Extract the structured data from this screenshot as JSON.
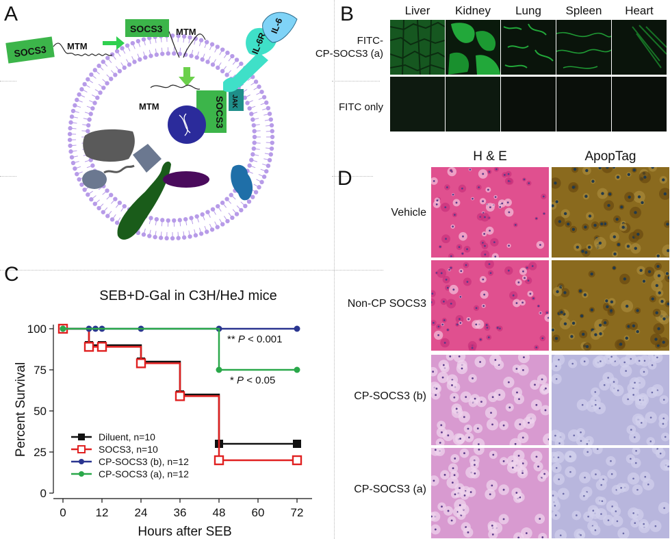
{
  "panels": {
    "a": "A",
    "b": "B",
    "c": "C",
    "d": "D"
  },
  "diagram": {
    "socs3_outer": "SOCS3",
    "mtm_outer": "MTM",
    "socs3_middle": "SOCS3",
    "mtm_middle": "MTM",
    "mtm_inner": "MTM",
    "socs3_inner": "SOCS3",
    "jak": "JAK",
    "il6r": "IL-6R",
    "il6": "IL-6",
    "colors": {
      "socs3_box": "#3cb54a",
      "arrow": "#2fd04f",
      "arrow_inner": "#6bd04b",
      "lipid": "#b79be8",
      "receptor": "#3fe0c8",
      "il6": "#7fd3f7",
      "jak": "#1f8f8a",
      "nucleus": "#2b2b9b",
      "dark_green": "#1a5c1a",
      "purple_organelle": "#4a0b5c",
      "blue_organelle": "#1f6fa8",
      "grey_organelle": "#5a5a5a"
    }
  },
  "panel_b": {
    "organs": [
      "Liver",
      "Kidney",
      "Lung",
      "Spleen",
      "Heart"
    ],
    "row1_label": "FITC-\nCP-SOCS3 (a)",
    "row1_line1": "FITC-",
    "row1_line2": "CP-SOCS3 (a)",
    "row2_label": "FITC only",
    "colors": {
      "signal": "#1fa83a",
      "background": "#0d150d"
    }
  },
  "panel_d": {
    "columns": [
      "H & E",
      "ApopTag"
    ],
    "rows": [
      "Vehicle",
      "Non-CP SOCS3",
      "CP-SOCS3 (b)",
      "CP-SOCS3 (a)"
    ],
    "colors": {
      "he_damaged": "#e0508f",
      "he_normal": "#d89ad0",
      "apop_positive": "#8a6a1e",
      "apop_normal": "#b8b6dd"
    }
  },
  "chart_data": {
    "type": "line",
    "step": true,
    "title": "SEB+D-Gal in C3H/HeJ mice",
    "xlabel": "Hours after SEB",
    "ylabel": "Percent Survival",
    "xlim": [
      0,
      72
    ],
    "ylim": [
      0,
      100
    ],
    "xticks": [
      0,
      12,
      24,
      36,
      48,
      60,
      72
    ],
    "yticks": [
      0,
      25,
      50,
      75,
      100
    ],
    "series": [
      {
        "name": "Diluent, n=10",
        "color": "#111111",
        "marker": "square-filled",
        "x": [
          0,
          8,
          12,
          24,
          36,
          48,
          72
        ],
        "y": [
          100,
          90,
          90,
          80,
          60,
          30,
          30
        ]
      },
      {
        "name": "SOCS3, n=10",
        "color": "#e02020",
        "marker": "square-open",
        "x": [
          0,
          8,
          12,
          24,
          36,
          48,
          72
        ],
        "y": [
          100,
          89,
          89,
          79,
          59,
          20,
          20
        ]
      },
      {
        "name": "CP-SOCS3 (b), n=12",
        "color": "#2a3590",
        "marker": "circle-filled",
        "x": [
          0,
          8,
          10,
          12,
          24,
          48,
          72
        ],
        "y": [
          100,
          100,
          100,
          100,
          100,
          100,
          100
        ]
      },
      {
        "name": "CP-SOCS3 (a), n=12",
        "color": "#2aa84a",
        "marker": "circle-filled",
        "x": [
          0,
          48,
          72
        ],
        "y": [
          100,
          75,
          75
        ]
      }
    ],
    "annotations": [
      {
        "stars": "**",
        "p": "P",
        "rel": "<",
        "value": "0.001"
      },
      {
        "stars": "*",
        "p": "P",
        "rel": "<",
        "value": "0.05"
      }
    ],
    "legend_position": "bottom-left",
    "grid": false
  }
}
